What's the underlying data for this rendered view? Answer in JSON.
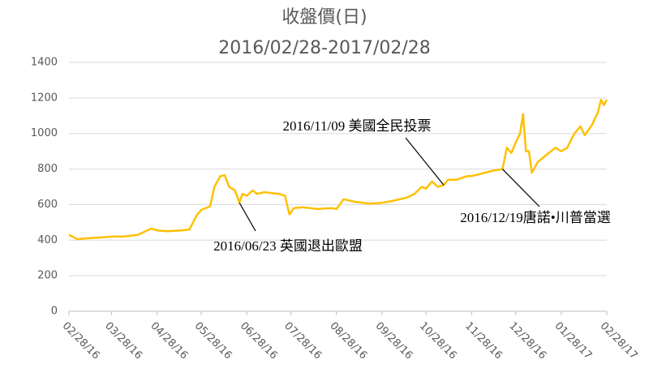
{
  "chart_data": {
    "type": "line",
    "title": "收盤價(日)",
    "subtitle": "2016/02/28-2017/02/28",
    "x": [
      "2016-02-28",
      "2016-03-05",
      "2016-03-10",
      "2016-03-20",
      "2016-03-28",
      "2016-04-05",
      "2016-04-15",
      "2016-04-24",
      "2016-04-28",
      "2016-05-05",
      "2016-05-15",
      "2016-05-20",
      "2016-05-25",
      "2016-05-28",
      "2016-06-03",
      "2016-06-06",
      "2016-06-10",
      "2016-06-13",
      "2016-06-16",
      "2016-06-20",
      "2016-06-23",
      "2016-06-25",
      "2016-06-28",
      "2016-07-02",
      "2016-07-05",
      "2016-07-10",
      "2016-07-15",
      "2016-07-20",
      "2016-07-24",
      "2016-07-27",
      "2016-07-30",
      "2016-08-05",
      "2016-08-15",
      "2016-08-25",
      "2016-08-28",
      "2016-09-02",
      "2016-09-10",
      "2016-09-20",
      "2016-09-28",
      "2016-10-05",
      "2016-10-15",
      "2016-10-20",
      "2016-10-25",
      "2016-10-28",
      "2016-11-01",
      "2016-11-05",
      "2016-11-09",
      "2016-11-12",
      "2016-11-18",
      "2016-11-25",
      "2016-11-28",
      "2016-12-05",
      "2016-12-12",
      "2016-12-19",
      "2016-12-22",
      "2016-12-25",
      "2016-12-28",
      "2016-12-31",
      "2017-01-02",
      "2017-01-04",
      "2017-01-06",
      "2017-01-08",
      "2017-01-12",
      "2017-01-18",
      "2017-01-24",
      "2017-01-28",
      "2017-02-01",
      "2017-02-06",
      "2017-02-10",
      "2017-02-13",
      "2017-02-18",
      "2017-02-22",
      "2017-02-24",
      "2017-02-26",
      "2017-02-28"
    ],
    "series": [
      {
        "name": "收盤價",
        "color": "#FFC000",
        "values": [
          430,
          405,
          410,
          415,
          420,
          420,
          430,
          465,
          455,
          450,
          455,
          460,
          540,
          570,
          590,
          700,
          760,
          765,
          700,
          680,
          610,
          660,
          650,
          680,
          660,
          670,
          665,
          660,
          650,
          545,
          580,
          585,
          575,
          580,
          575,
          630,
          615,
          605,
          610,
          620,
          640,
          660,
          700,
          690,
          730,
          700,
          710,
          740,
          740,
          760,
          760,
          775,
          790,
          800,
          920,
          890,
          950,
          1000,
          1110,
          900,
          900,
          780,
          840,
          880,
          920,
          900,
          920,
          1000,
          1040,
          990,
          1050,
          1120,
          1190,
          1160,
          1190
        ]
      }
    ],
    "xlim": [
      "2016-02-28",
      "2017-02-28"
    ],
    "xticks": [
      {
        "value": "2016-02-28",
        "label": "02/28/16"
      },
      {
        "value": "2016-03-28",
        "label": "03/28/16"
      },
      {
        "value": "2016-04-28",
        "label": "04/28/16"
      },
      {
        "value": "2016-05-28",
        "label": "05/28/16"
      },
      {
        "value": "2016-06-28",
        "label": "06/28/16"
      },
      {
        "value": "2016-07-28",
        "label": "07/28/16"
      },
      {
        "value": "2016-08-28",
        "label": "08/28/16"
      },
      {
        "value": "2016-09-28",
        "label": "09/28/16"
      },
      {
        "value": "2016-10-28",
        "label": "10/28/16"
      },
      {
        "value": "2016-11-28",
        "label": "11/28/16"
      },
      {
        "value": "2016-12-28",
        "label": "12/28/16"
      },
      {
        "value": "2017-01-28",
        "label": "01/28/17"
      },
      {
        "value": "2017-02-28",
        "label": "02/28/17"
      }
    ],
    "ylim": [
      0,
      1400
    ],
    "yticks": [
      0,
      200,
      400,
      600,
      800,
      1000,
      1200,
      1400
    ],
    "grid": true,
    "annotations": [
      {
        "text": "2016/06/23 英國退出歐盟",
        "x": "2016-06-23"
      },
      {
        "text": "2016/11/09 美國全民投票",
        "x": "2016-11-09"
      },
      {
        "text": "2016/12/19唐諾•川普當選",
        "x": "2016-12-19"
      }
    ]
  }
}
